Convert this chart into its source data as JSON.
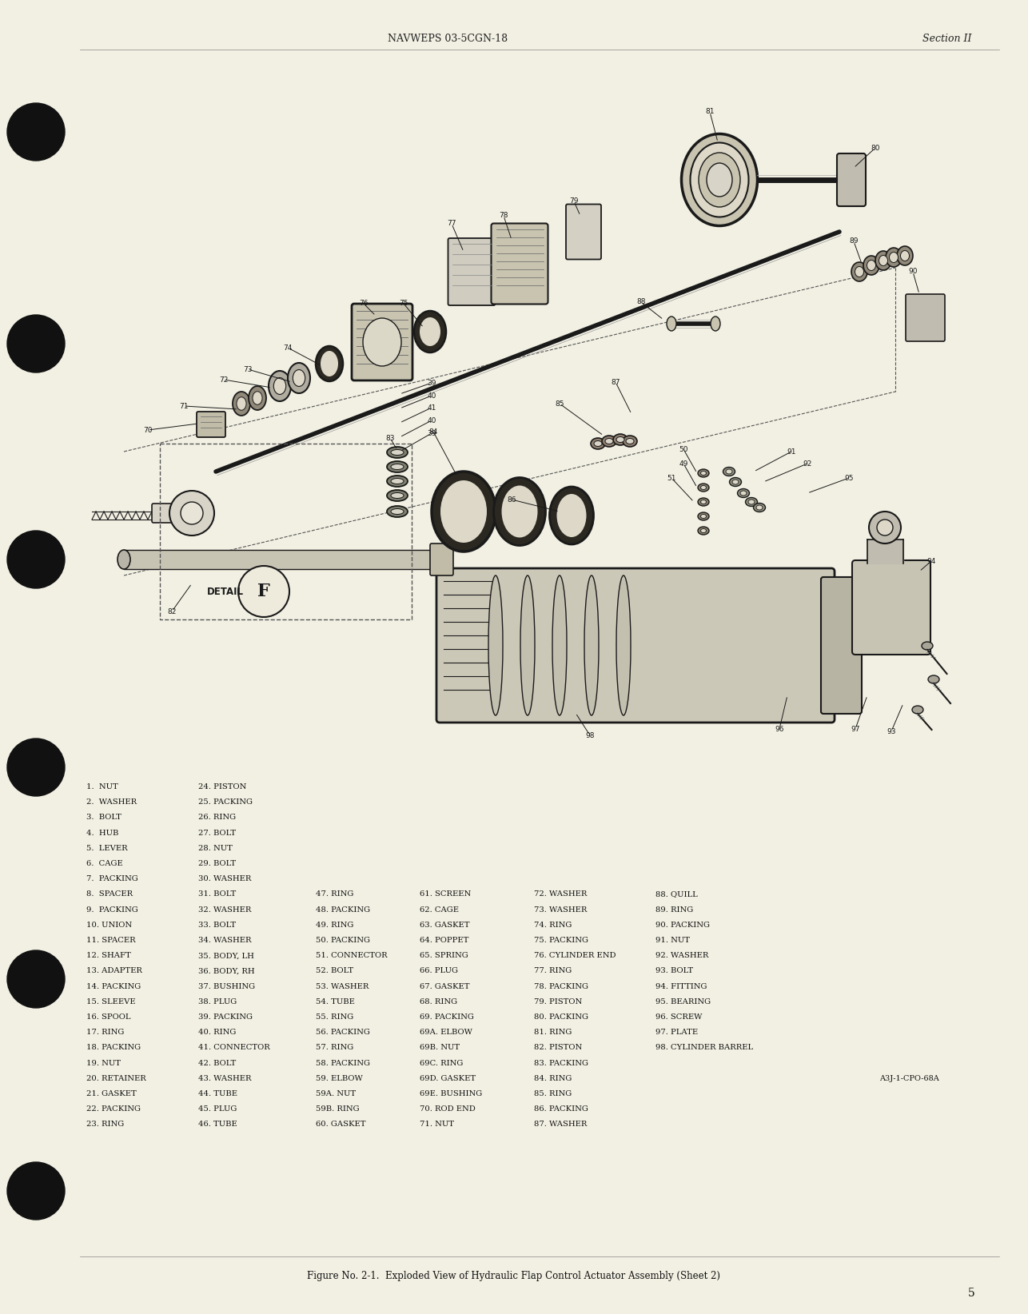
{
  "page_bg": "#F2F0E3",
  "header_left": "NAVWEPS 03-5CGN-18",
  "header_right": "Section II",
  "footer_center": "Figure No. 2-1.  Exploded View of Hydraulic Flap Control Actuator Assembly (Sheet 2)",
  "page_number": "5",
  "ref_code": "A3J-1-CPO-68A",
  "parts_col1": [
    "1.  NUT",
    "2.  WASHER",
    "3.  BOLT",
    "4.  HUB",
    "5.  LEVER",
    "6.  CAGE",
    "7.  PACKING",
    "8.  SPACER",
    "9.  PACKING",
    "10. UNION",
    "11. SPACER",
    "12. SHAFT",
    "13. ADAPTER",
    "14. PACKING",
    "15. SLEEVE",
    "16. SPOOL",
    "17. RING",
    "18. PACKING",
    "19. NUT",
    "20. RETAINER",
    "21. GASKET",
    "22. PACKING",
    "23. RING"
  ],
  "parts_col2": [
    "24. PISTON",
    "25. PACKING",
    "26. RING",
    "27. BOLT",
    "28. NUT",
    "29. BOLT",
    "30. WASHER",
    "31. BOLT",
    "32. WASHER",
    "33. BOLT",
    "34. WASHER",
    "35. BODY, LH",
    "36. BODY, RH",
    "37. BUSHING",
    "38. PLUG",
    "39. PACKING",
    "40. RING",
    "41. CONNECTOR",
    "42. BOLT",
    "43. WASHER",
    "44. TUBE",
    "45. PLUG",
    "46. TUBE"
  ],
  "parts_col3": [
    "47. RING",
    "48. PACKING",
    "49. RING",
    "50. PACKING",
    "51. CONNECTOR",
    "52. BOLT",
    "53. WASHER",
    "54. TUBE",
    "55. RING",
    "56. PACKING",
    "57. RING",
    "58. PACKING",
    "59. ELBOW",
    "59A. NUT",
    "59B. RING",
    "60. GASKET"
  ],
  "parts_col4": [
    "61. SCREEN",
    "62. CAGE",
    "63. GASKET",
    "64. POPPET",
    "65. SPRING",
    "66. PLUG",
    "67. GASKET",
    "68. RING",
    "69. PACKING",
    "69A. ELBOW",
    "69B. NUT",
    "69C. RING",
    "69D. GASKET",
    "69E. BUSHING",
    "70. ROD END",
    "71. NUT"
  ],
  "parts_col5": [
    "72. WASHER",
    "73. WASHER",
    "74. RING",
    "75. PACKING",
    "76. CYLINDER END",
    "77. RING",
    "78. PACKING",
    "79. PISTON",
    "80. PACKING",
    "81. RING",
    "82. PISTON",
    "83. PACKING",
    "84. RING",
    "85. RING",
    "86. PACKING",
    "87. WASHER"
  ],
  "parts_col6": [
    "88. QUILL",
    "89. RING",
    "90. PACKING",
    "91. NUT",
    "92. WASHER",
    "93. BOLT",
    "94. FITTING",
    "95. BEARING",
    "96. SCREW",
    "97. PLATE",
    "98. CYLINDER BARREL"
  ]
}
